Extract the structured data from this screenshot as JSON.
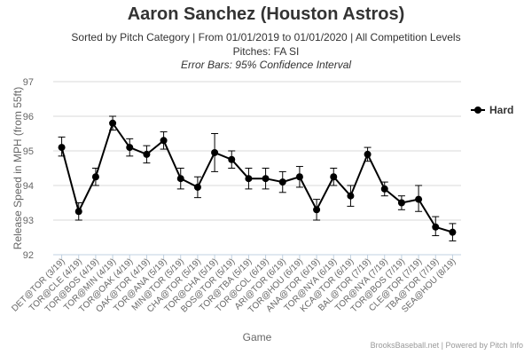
{
  "header": {
    "title": "Aaron Sanchez (Houston Astros)",
    "subtitle": "Sorted by Pitch Category | From 01/01/2019 to 01/01/2020 | All Competition Levels",
    "pitches": "Pitches: FA SI",
    "error_note": "Error Bars: 95% Confidence Interval"
  },
  "credits": {
    "text": "BrooksBaseball.net | Powered by Pitch Info"
  },
  "chart_data": {
    "type": "line",
    "title": "Aaron Sanchez (Houston Astros)",
    "xlabel": "Game",
    "ylabel": "Release Speed in MPH (from 55ft)",
    "ylim": [
      92,
      97
    ],
    "yticks": [
      92,
      93,
      94,
      95,
      96,
      97
    ],
    "grid": true,
    "legend_position": "right",
    "categories": [
      "DET@TOR (3/19)",
      "TOR@CLE (4/19)",
      "TOR@BOS (4/19)",
      "TOR@MIN (4/19)",
      "TOR@OAK (4/19)",
      "OAK@TOR (4/19)",
      "TOR@ANA (5/19)",
      "MIN@TOR (5/19)",
      "CHA@TOR (5/19)",
      "TOR@CHA (5/19)",
      "BOS@TOR (5/19)",
      "TOR@TBA (5/19)",
      "TOR@COL (6/19)",
      "ARI@TOR (6/19)",
      "TOR@HOU (6/19)",
      "ANA@TOR (6/19)",
      "TOR@NYA (6/19)",
      "KCA@TOR (6/19)",
      "BAL@TOR (7/19)",
      "TOR@NYA (7/19)",
      "TOR@BOS (7/19)",
      "CLE@TOR (7/19)",
      "TBA@TOR (7/19)",
      "SEA@HOU (8/19)"
    ],
    "series": [
      {
        "name": "Hard",
        "color": "#000000",
        "values": [
          95.1,
          93.25,
          94.25,
          95.8,
          95.1,
          94.9,
          95.3,
          94.2,
          93.95,
          94.95,
          94.75,
          94.2,
          94.2,
          94.1,
          94.25,
          93.3,
          94.25,
          93.7,
          94.9,
          93.9,
          93.5,
          93.6,
          92.8,
          92.65
        ],
        "error_low": [
          94.85,
          93.0,
          94.0,
          95.6,
          94.85,
          94.65,
          95.05,
          93.9,
          93.65,
          94.4,
          94.5,
          93.9,
          93.9,
          93.8,
          93.95,
          93.0,
          94.0,
          93.4,
          94.7,
          93.7,
          93.3,
          93.25,
          92.55,
          92.4
        ],
        "error_high": [
          95.4,
          93.5,
          94.5,
          96.0,
          95.35,
          95.15,
          95.55,
          94.5,
          94.25,
          95.5,
          95.0,
          94.5,
          94.5,
          94.4,
          94.55,
          93.6,
          94.5,
          94.0,
          95.1,
          94.1,
          93.7,
          94.0,
          93.1,
          92.9
        ]
      }
    ]
  }
}
